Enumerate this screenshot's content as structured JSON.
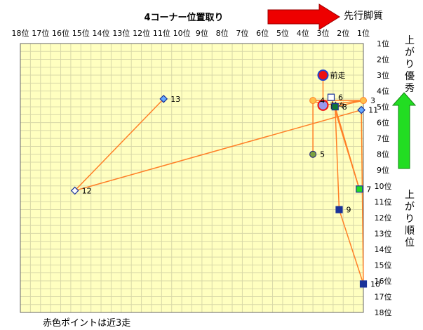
{
  "chart_data": {
    "type": "scatter",
    "title": "4コーナー位置取り",
    "x_axis": {
      "range": [
        18,
        1
      ],
      "reversed": true,
      "tick_labels": [
        "18位",
        "17位",
        "16位",
        "15位",
        "14位",
        "13位",
        "12位",
        "11位",
        "10位",
        "9位",
        "8位",
        "7位",
        "6位",
        "5位",
        "4位",
        "3位",
        "2位",
        "1位"
      ]
    },
    "y_axis": {
      "range": [
        1,
        18
      ],
      "reversed": true,
      "tick_labels": [
        "1位",
        "2位",
        "3位",
        "4位",
        "5位",
        "6位",
        "7位",
        "8位",
        "9位",
        "10位",
        "11位",
        "12位",
        "13位",
        "14位",
        "15位",
        "16位",
        "17位",
        "18位"
      ]
    },
    "grid": true,
    "annotations": {
      "top_right_arrow": "先行脚質",
      "right_arrow_up": "上がり優秀",
      "right_label": "上がり順位",
      "bottom_note": "赤色ポイントは近3走"
    },
    "colors": {
      "plot_bg": "#FFFFC0",
      "grid": "#D8D8A8",
      "line": "#FF7F27",
      "red_arrow": "#EE0000",
      "green_arrow": "#22DD22"
    },
    "points": [
      {
        "label": "前走",
        "x": 3.0,
        "y": 3.0,
        "shape": "circle",
        "size": "large",
        "fill": "#EE1111",
        "stroke": "#2244CC"
      },
      {
        "label": "前々",
        "x": 3.0,
        "y": 4.9,
        "shape": "circle",
        "size": "large",
        "fill": "#9999EE",
        "stroke": "#EE1111"
      },
      {
        "label": "3",
        "x": 1.0,
        "y": 4.6,
        "shape": "circle",
        "size": "small",
        "fill": "#FFC04C",
        "stroke": "#FF7F27"
      },
      {
        "label": "4",
        "x": 3.5,
        "y": 4.6,
        "shape": "circle",
        "size": "small",
        "fill": "#FFC04C",
        "stroke": "#FF7F27"
      },
      {
        "label": "5",
        "x": 3.5,
        "y": 8.0,
        "shape": "circle",
        "size": "small",
        "fill": "#7BA23F",
        "stroke": "#1A1A7A"
      },
      {
        "label": "6",
        "x": 2.6,
        "y": 4.4,
        "shape": "square",
        "size": "small",
        "fill": "#FFFFFF",
        "stroke": "#1A3399"
      },
      {
        "label": "7",
        "x": 1.2,
        "y": 10.2,
        "shape": "square",
        "size": "small",
        "fill": "#22DD22",
        "stroke": "#1A3399"
      },
      {
        "label": "8",
        "x": 2.4,
        "y": 5.0,
        "shape": "square",
        "size": "small",
        "fill": "#117733",
        "stroke": "#1A3399"
      },
      {
        "label": "9",
        "x": 2.2,
        "y": 11.5,
        "shape": "square",
        "size": "small",
        "fill": "#1A3399",
        "stroke": "#1A3399"
      },
      {
        "label": "10",
        "x": 1.0,
        "y": 16.2,
        "shape": "square",
        "size": "small",
        "fill": "#1A3399",
        "stroke": "#1A3399"
      },
      {
        "label": "11",
        "x": 1.1,
        "y": 5.2,
        "shape": "diamond",
        "size": "small",
        "fill": "#66AAFF",
        "stroke": "#1A3399"
      },
      {
        "label": "12",
        "x": 15.3,
        "y": 10.3,
        "shape": "diamond",
        "size": "small",
        "fill": "#FFFFFF",
        "stroke": "#1A3399"
      },
      {
        "label": "13",
        "x": 10.9,
        "y": 4.5,
        "shape": "diamond",
        "size": "small",
        "fill": "#66AAFF",
        "stroke": "#1A3399"
      }
    ],
    "connections": [
      [
        "前走",
        "前々"
      ],
      [
        "前々",
        "3"
      ],
      [
        "前々",
        "4"
      ],
      [
        "前々",
        "6"
      ],
      [
        "4",
        "5"
      ],
      [
        "4",
        "3"
      ],
      [
        "3",
        "8"
      ],
      [
        "8",
        "7"
      ],
      [
        "8",
        "9"
      ],
      [
        "9",
        "10"
      ],
      [
        "11",
        "10"
      ],
      [
        "11",
        "12"
      ],
      [
        "12",
        "13"
      ],
      [
        "6",
        "7"
      ]
    ]
  }
}
